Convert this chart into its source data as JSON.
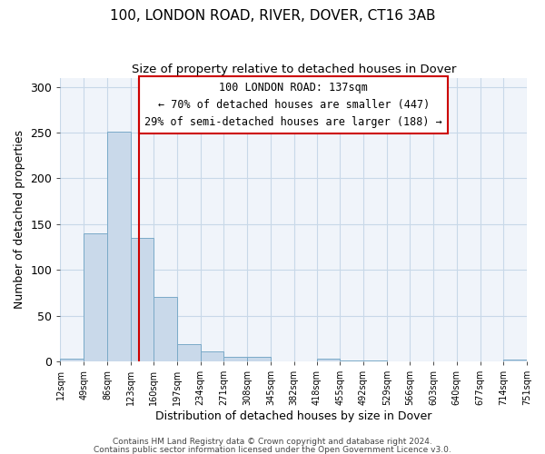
{
  "title": "100, LONDON ROAD, RIVER, DOVER, CT16 3AB",
  "subtitle": "Size of property relative to detached houses in Dover",
  "xlabel": "Distribution of detached houses by size in Dover",
  "ylabel": "Number of detached properties",
  "bin_edges": [
    12,
    49,
    86,
    123,
    160,
    197,
    234,
    271,
    308,
    345,
    382,
    418,
    455,
    492,
    529,
    566,
    603,
    640,
    677,
    714,
    751
  ],
  "bin_heights": [
    3,
    140,
    251,
    135,
    70,
    19,
    11,
    5,
    5,
    0,
    0,
    3,
    1,
    1,
    0,
    0,
    0,
    0,
    0,
    2
  ],
  "bar_facecolor": "#c9d9ea",
  "bar_edgecolor": "#7aaac8",
  "vline_x": 137,
  "vline_color": "#cc0000",
  "ylim": [
    0,
    310
  ],
  "yticks": [
    0,
    50,
    100,
    150,
    200,
    250,
    300
  ],
  "tick_labels": [
    "12sqm",
    "49sqm",
    "86sqm",
    "123sqm",
    "160sqm",
    "197sqm",
    "234sqm",
    "271sqm",
    "308sqm",
    "345sqm",
    "382sqm",
    "418sqm",
    "455sqm",
    "492sqm",
    "529sqm",
    "566sqm",
    "603sqm",
    "640sqm",
    "677sqm",
    "714sqm",
    "751sqm"
  ],
  "annotation_title": "100 LONDON ROAD: 137sqm",
  "annotation_line1": "← 70% of detached houses are smaller (447)",
  "annotation_line2": "29% of semi-detached houses are larger (188) →",
  "footer1": "Contains HM Land Registry data © Crown copyright and database right 2024.",
  "footer2": "Contains public sector information licensed under the Open Government Licence v3.0.",
  "bg_color": "#f0f4fa",
  "grid_color": "#c8d8e8"
}
